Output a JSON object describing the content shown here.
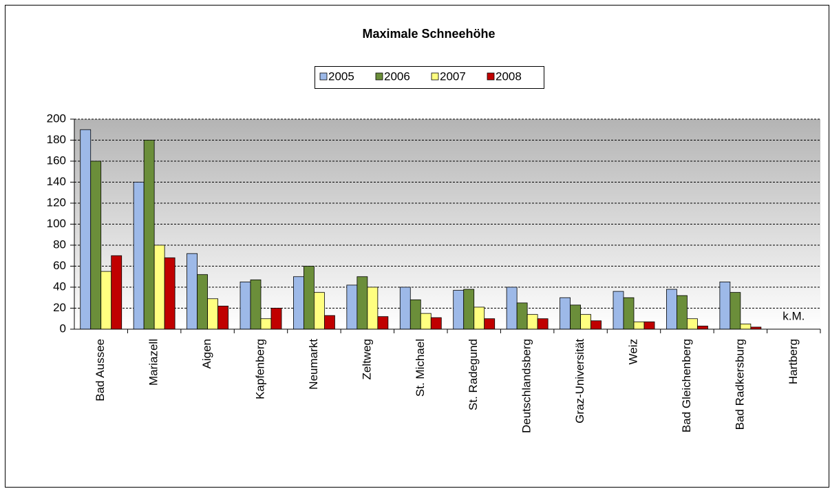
{
  "chart_data": {
    "type": "bar",
    "title": "Maximale Schneehöhe",
    "categories": [
      "Bad Aussee",
      "Mariazell",
      "Aigen",
      "Kapfenberg",
      "Neumarkt",
      "Zeltweg",
      "St. Michael",
      "St. Radegund",
      "Deutschlandsberg",
      "Graz-Universität",
      "Weiz",
      "Bad Gleichenberg",
      "Bad Radkersburg",
      "Hartberg"
    ],
    "series": [
      {
        "name": "2005",
        "color": "#9db9e8",
        "values": [
          190,
          140,
          72,
          45,
          50,
          42,
          40,
          37,
          40,
          30,
          36,
          38,
          45,
          null
        ]
      },
      {
        "name": "2006",
        "color": "#6b8e3a",
        "values": [
          160,
          180,
          52,
          47,
          60,
          50,
          28,
          38,
          25,
          23,
          30,
          32,
          35,
          null
        ]
      },
      {
        "name": "2007",
        "color": "#ffff80",
        "values": [
          55,
          80,
          29,
          10,
          35,
          40,
          15,
          21,
          14,
          14,
          7,
          10,
          5,
          null
        ]
      },
      {
        "name": "2008",
        "color": "#c00000",
        "values": [
          70,
          68,
          22,
          20,
          13,
          12,
          11,
          10,
          10,
          8,
          7,
          3,
          2,
          null
        ]
      }
    ],
    "annotation": "k.M.",
    "ylim": [
      0,
      200
    ],
    "yticks": [
      0,
      20,
      40,
      60,
      80,
      100,
      120,
      140,
      160,
      180,
      200
    ],
    "grid": true,
    "legend": "top"
  }
}
